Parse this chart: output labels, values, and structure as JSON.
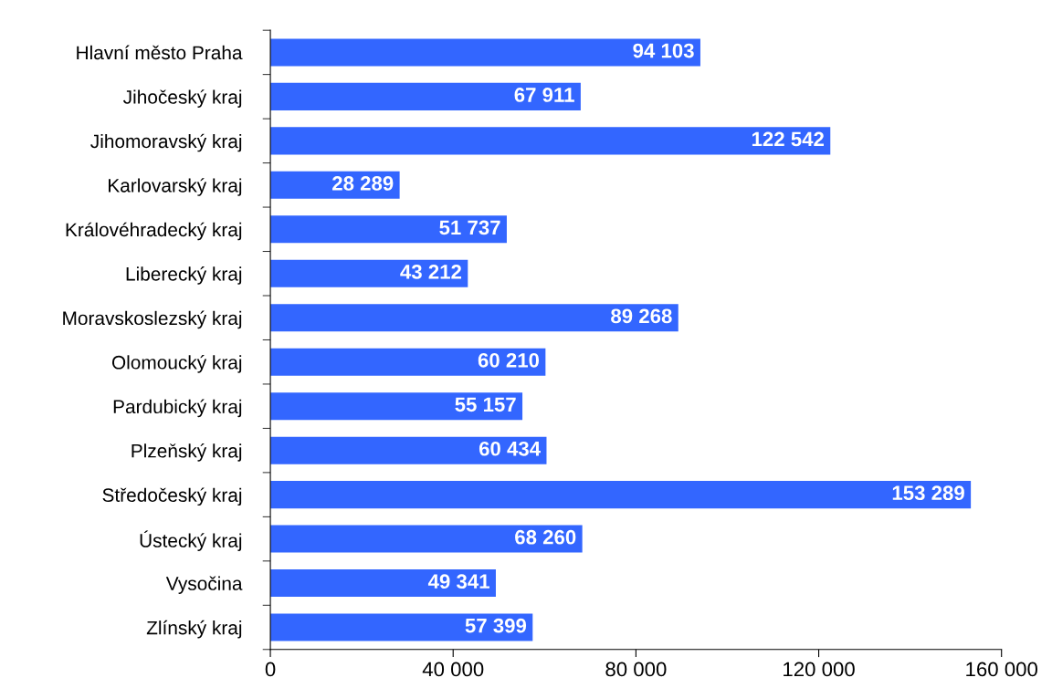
{
  "chart_data": {
    "type": "bar",
    "orientation": "horizontal",
    "categories": [
      "Hlavní město Praha",
      "Jihočeský kraj",
      "Jihomoravský kraj",
      "Karlovarský kraj",
      "Královéhradecký kraj",
      "Liberecký kraj",
      "Moravskoslezský kraj",
      "Olomoucký kraj",
      "Pardubický kraj",
      "Plzeňský kraj",
      "Středočeský kraj",
      "Ústecký kraj",
      "Vysočina",
      "Zlínský kraj"
    ],
    "values": [
      94103,
      67911,
      122542,
      28289,
      51737,
      43212,
      89268,
      60210,
      55157,
      60434,
      153289,
      68260,
      49341,
      57399
    ],
    "value_labels": [
      "94 103",
      "67 911",
      "122 542",
      "28 289",
      "51 737",
      "43 212",
      "89 268",
      "60 210",
      "55 157",
      "60 434",
      "153 289",
      "68 260",
      "49 341",
      "57 399"
    ],
    "color": "#3366ff",
    "xlim": [
      0,
      160000
    ],
    "xticks": [
      0,
      {
        "value": 40000,
        "label": "40 000"
      },
      {
        "value": 80000,
        "label": "80 000"
      },
      {
        "value": 120000,
        "label": "120 000"
      },
      {
        "value": 160000,
        "label": "160 000"
      }
    ],
    "grid": false,
    "legend": false
  }
}
